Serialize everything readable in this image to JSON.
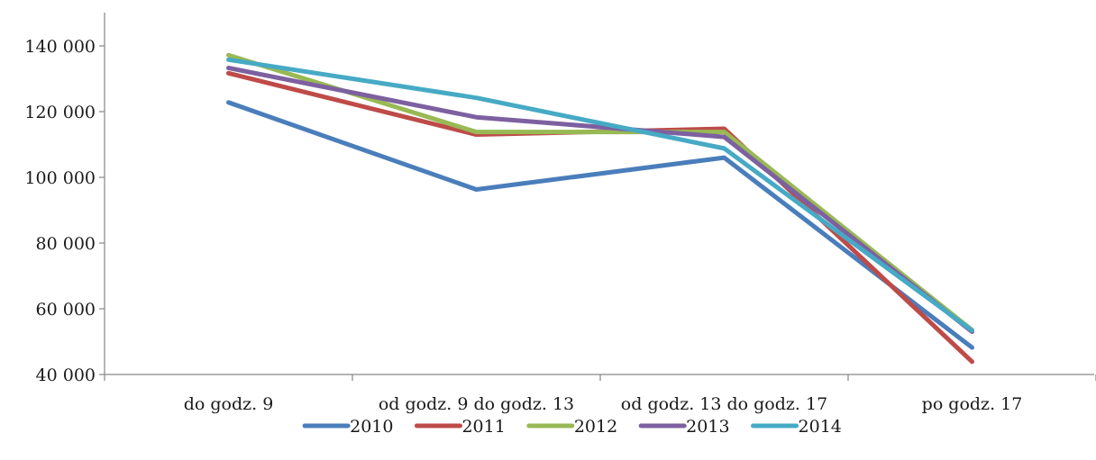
{
  "chart_data": {
    "type": "line",
    "title": "",
    "xlabel": "",
    "ylabel": "",
    "categories": [
      "do godz. 9",
      "od godz. 9 do godz. 13",
      "od godz. 13 do godz. 17",
      "po godz. 17"
    ],
    "y_ticks": [
      {
        "value": 40000,
        "label": "40 000"
      },
      {
        "value": 60000,
        "label": "60 000"
      },
      {
        "value": 80000,
        "label": "80 000"
      },
      {
        "value": 100000,
        "label": "100 000"
      },
      {
        "value": 120000,
        "label": "120 000"
      },
      {
        "value": 140000,
        "label": "140 000"
      }
    ],
    "ylim": [
      40000,
      150000
    ],
    "grid": false,
    "legend_position": "bottom",
    "series": [
      {
        "name": "2010",
        "color": "#4a7ebb",
        "values": [
          122800,
          96300,
          106000,
          48200
        ]
      },
      {
        "name": "2011",
        "color": "#be4b48",
        "values": [
          131700,
          113000,
          114800,
          43900
        ]
      },
      {
        "name": "2012",
        "color": "#98b954",
        "values": [
          137200,
          113800,
          113800,
          53500
        ]
      },
      {
        "name": "2013",
        "color": "#7d60a0",
        "values": [
          133300,
          118300,
          112300,
          53000
        ]
      },
      {
        "name": "2014",
        "color": "#46aac5",
        "values": [
          135800,
          124200,
          108800,
          53400
        ]
      }
    ]
  }
}
